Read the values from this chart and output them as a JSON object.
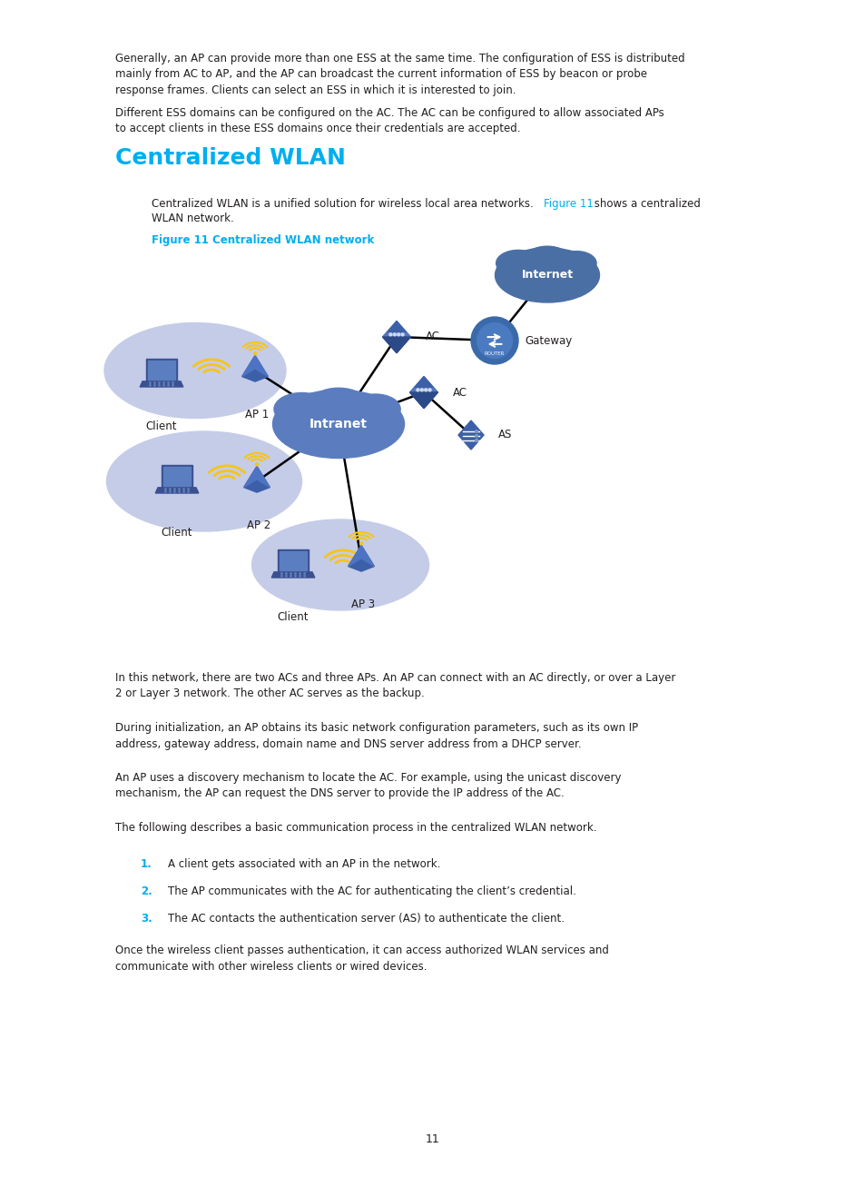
{
  "page_bg": "#ffffff",
  "text_color": "#231f20",
  "cyan_color": "#00aeef",
  "heading": "Centralized WLAN",
  "figure_label": "Figure 11 Centralized WLAN network",
  "para1": "Generally, an AP can provide more than one ESS at the same time. The configuration of ESS is distributed\nmainly from AC to AP, and the AP can broadcast the current information of ESS by beacon or probe\nresponse frames. Clients can select an ESS in which it is interested to join.",
  "para2": "Different ESS domains can be configured on the AC. The AC can be configured to allow associated APs\nto accept clients in these ESS domains once their credentials are accepted.",
  "para4": "In this network, there are two ACs and three APs. An AP can connect with an AC directly, or over a Layer\n2 or Layer 3 network. The other AC serves as the backup.",
  "para5": "During initialization, an AP obtains its basic network configuration parameters, such as its own IP\naddress, gateway address, domain name and DNS server address from a DHCP server.",
  "para6": "An AP uses a discovery mechanism to locate the AC. For example, using the unicast discovery\nmechanism, the AP can request the DNS server to provide the IP address of the AC.",
  "para7": "The following describes a basic communication process in the centralized WLAN network.",
  "list1": "A client gets associated with an AP in the network.",
  "list2": "The AP communicates with the AC for authenticating the client’s credential.",
  "list3": "The AC contacts the authentication server (AS) to authenticate the client.",
  "para8": "Once the wireless client passes authentication, it can access authorized WLAN services and\ncommunicate with other wireless clients or wired devices.",
  "page_num": "11",
  "ellipse_color": "#c5cce8",
  "cloud_color": "#5b7dbf",
  "device_blue": "#3a5a9b",
  "device_blue2": "#4a6ca8",
  "wifi_yellow": "#f5c518",
  "line_color": "#1a1a1a"
}
